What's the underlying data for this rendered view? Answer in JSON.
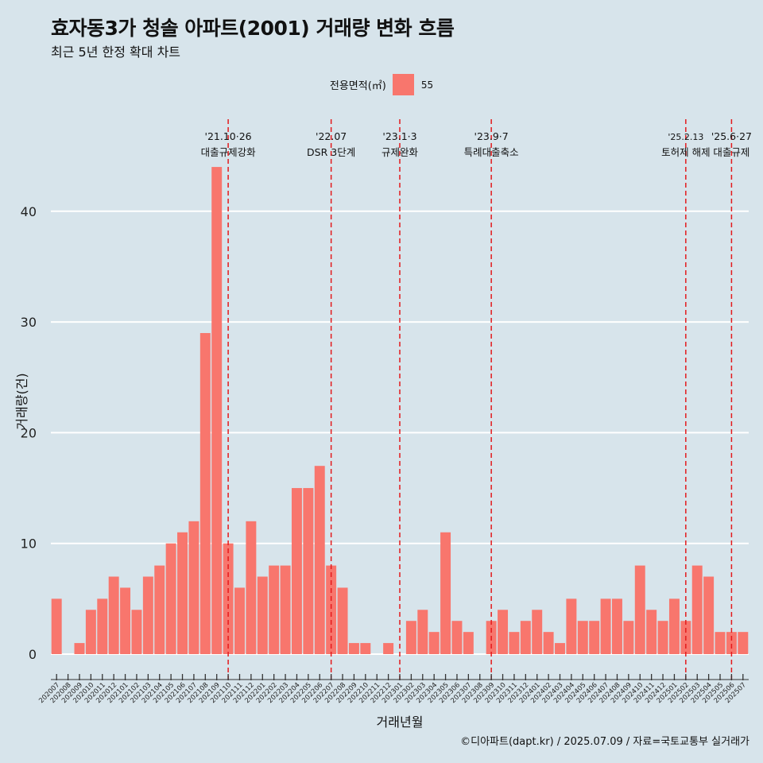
{
  "title": "효자동3가 청솔 아파트(2001) 거래량 변화 흐름",
  "subtitle": "최근 5년 한정 확대 차트",
  "caption": "©디아파트(dapt.kr) / 2025.07.09 / 자료=국토교통부 실거래가",
  "legend": {
    "title": "전용면적(㎡)",
    "label": "55"
  },
  "colors": {
    "bar": "#f8766d",
    "event_line": "#e31a1c",
    "background": "#d7e4eb",
    "grid": "#ffffff"
  },
  "chart_data": {
    "type": "bar",
    "xlabel": "거래년월",
    "ylabel": "거래량(건)",
    "ylim": [
      0,
      44
    ],
    "y_ticks": [
      0,
      10,
      20,
      30,
      40
    ],
    "grid": true,
    "legend_position": "top",
    "series": [
      {
        "name": "55"
      }
    ],
    "months": [
      "202007",
      "202008",
      "202009",
      "202010",
      "202011",
      "202012",
      "202101",
      "202102",
      "202103",
      "202104",
      "202105",
      "202106",
      "202107",
      "202108",
      "202109",
      "202110",
      "202111",
      "202112",
      "202201",
      "202202",
      "202203",
      "202204",
      "202205",
      "202206",
      "202207",
      "202208",
      "202209",
      "202210",
      "202211",
      "202212",
      "202301",
      "202302",
      "202303",
      "202304",
      "202305",
      "202306",
      "202307",
      "202308",
      "202309",
      "202310",
      "202311",
      "202312",
      "202401",
      "202402",
      "202403",
      "202404",
      "202405",
      "202406",
      "202407",
      "202408",
      "202409",
      "202410",
      "202411",
      "202412",
      "202501",
      "202502",
      "202503",
      "202504",
      "202505",
      "202506",
      "202507"
    ],
    "values": [
      5,
      0,
      1,
      4,
      5,
      7,
      6,
      4,
      7,
      8,
      10,
      11,
      12,
      29,
      44,
      10,
      6,
      12,
      7,
      8,
      8,
      15,
      15,
      17,
      8,
      6,
      1,
      1,
      0,
      1,
      0,
      3,
      4,
      2,
      11,
      3,
      2,
      0,
      3,
      4,
      2,
      3,
      4,
      2,
      1,
      5,
      3,
      3,
      5,
      5,
      3,
      8,
      4,
      3,
      5,
      3,
      8,
      7,
      2,
      2,
      2
    ],
    "tick_labels": [
      "202007",
      "202008",
      "202009",
      "202010",
      "202011",
      "202012",
      "202101",
      "202102",
      "202103",
      "202104",
      "202105",
      "202106",
      "202107",
      "202108",
      "202109",
      "202110",
      "202111",
      "202112",
      "202201",
      "202202",
      "202203",
      "202204",
      "202205",
      "202206",
      "202207",
      "202208",
      "202209",
      "202210",
      "202211",
      "202212",
      "202301",
      "202302",
      "202303",
      "202304",
      "202305",
      "202306",
      "202307",
      "202308",
      "202309",
      "202310",
      "202311",
      "202312",
      "202401",
      "202402",
      "202403",
      "202404",
      "202405",
      "202406",
      "202407",
      "202408",
      "202409",
      "202410",
      "202411",
      "202412",
      "202501",
      "202502",
      "202503",
      "202504",
      "202505",
      "202506",
      "202507"
    ],
    "annotations": [
      {
        "month": "202110",
        "date": "'21.10·26",
        "label": "대출규제강화"
      },
      {
        "month": "202207",
        "date": "'22.07",
        "label": "DSR 3단계"
      },
      {
        "month": "202301",
        "date": "'23.1·3",
        "label": "규제완화"
      },
      {
        "month": "202309",
        "date": "'23.9·7",
        "label": "특례대출축소"
      },
      {
        "month": "202502",
        "date": "'25.2.13",
        "label": "토허제 해제"
      },
      {
        "month": "202506",
        "date": "'25.6·27",
        "label": "대출규제"
      }
    ]
  }
}
